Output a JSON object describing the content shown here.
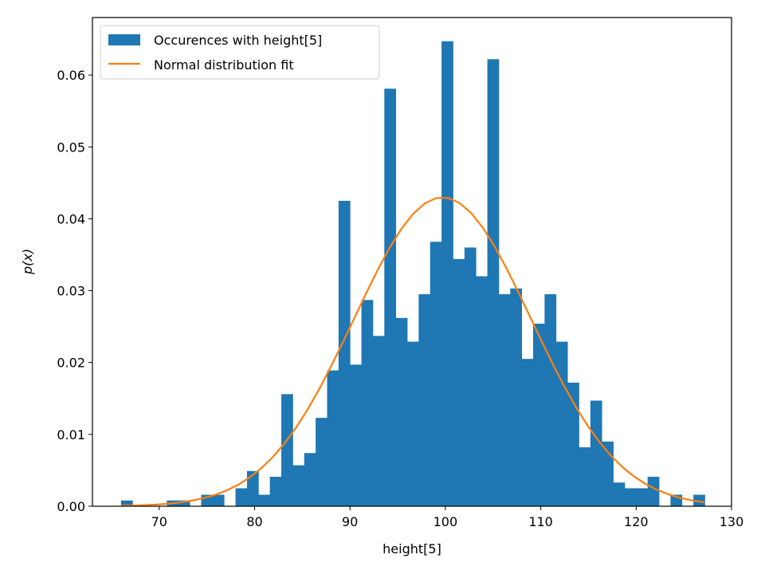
{
  "chart_data": {
    "type": "bar",
    "title": "",
    "xlabel": "height[5]",
    "ylabel": "p(x)",
    "xlim": [
      63,
      130
    ],
    "ylim": [
      0,
      0.068
    ],
    "xticks": [
      70,
      80,
      90,
      100,
      110,
      120,
      130
    ],
    "xtick_labels": [
      "70",
      "80",
      "90",
      "100",
      "110",
      "120",
      "130"
    ],
    "yticks": [
      0,
      0.01,
      0.02,
      0.03,
      0.04,
      0.05,
      0.06
    ],
    "ytick_labels": [
      "0.00",
      "0.01",
      "0.02",
      "0.03",
      "0.04",
      "0.05",
      "0.06"
    ],
    "grid": false,
    "legend_position": "upper-left",
    "series": [
      {
        "name": "Occurences with height[5]",
        "type": "histogram",
        "color": "#1f77b4",
        "bin_start": 66.0,
        "bin_width": 1.2,
        "values": [
          0.0008,
          0,
          0,
          0,
          0.0008,
          0.0008,
          0,
          0.0016,
          0.0016,
          0,
          0.0025,
          0.0049,
          0.0016,
          0.0041,
          0.0156,
          0.0057,
          0.0074,
          0.0123,
          0.0189,
          0.0425,
          0.0197,
          0.0287,
          0.0237,
          0.0581,
          0.0262,
          0.0229,
          0.0295,
          0.0368,
          0.0647,
          0.0344,
          0.036,
          0.032,
          0.0622,
          0.0295,
          0.0303,
          0.0205,
          0.0254,
          0.0295,
          0.0229,
          0.0172,
          0.0082,
          0.0147,
          0.009,
          0.0033,
          0.0025,
          0.0025,
          0.0041,
          0,
          0.0016,
          0,
          0.0016
        ]
      },
      {
        "name": "Normal distribution fit",
        "type": "line",
        "color": "#ff7f0e",
        "mean": 99.7,
        "std": 9.28,
        "x_range": [
          66.0,
          127.2
        ]
      }
    ]
  }
}
